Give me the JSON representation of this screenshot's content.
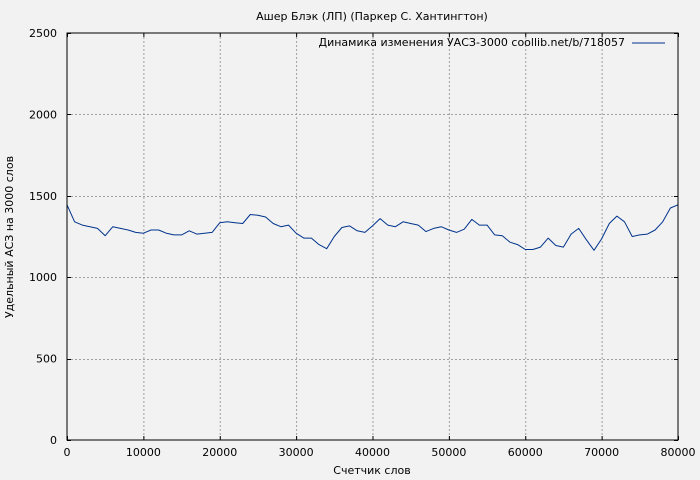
{
  "chart_data": {
    "type": "line",
    "title": "Ашер Блэк (ЛП) (Паркер С. Хантингтон)",
    "xlabel": "Счетчик слов",
    "ylabel": "Удельный АСЗ на 3000 слов",
    "xlim": [
      0,
      80000
    ],
    "ylim": [
      0,
      2500
    ],
    "x_ticks": [
      0,
      10000,
      20000,
      30000,
      40000,
      50000,
      60000,
      70000,
      80000
    ],
    "x_tick_labels": [
      "0",
      "10000",
      "20000",
      "30000",
      "40000",
      "50000",
      "60000",
      "70000",
      "80000"
    ],
    "y_ticks": [
      0,
      500,
      1000,
      1500,
      2000,
      2500
    ],
    "y_tick_labels": [
      "0",
      "500",
      "1000",
      "1500",
      "2000",
      "2500"
    ],
    "grid": true,
    "legend_position": "top-right",
    "series": [
      {
        "name": "Динамика изменения УАСЗ-3000 coollib.net/b/718057",
        "color": "#00338c",
        "x": [
          0,
          1000,
          2000,
          3000,
          4000,
          5000,
          6000,
          7000,
          8000,
          9000,
          10000,
          11000,
          12000,
          13000,
          14000,
          15000,
          16000,
          17000,
          18000,
          19000,
          20000,
          21000,
          22000,
          23000,
          24000,
          25000,
          26000,
          27000,
          28000,
          29000,
          30000,
          31000,
          32000,
          33000,
          34000,
          35000,
          36000,
          37000,
          38000,
          39000,
          40000,
          41000,
          42000,
          43000,
          44000,
          45000,
          46000,
          47000,
          48000,
          49000,
          50000,
          51000,
          52000,
          53000,
          54000,
          55000,
          56000,
          57000,
          58000,
          59000,
          60000,
          61000,
          62000,
          63000,
          64000,
          65000,
          66000,
          67000,
          68000,
          69000,
          70000,
          71000,
          72000,
          73000,
          74000,
          75000,
          76000,
          77000,
          78000,
          79000,
          80000
        ],
        "y": [
          1445,
          1340,
          1320,
          1310,
          1300,
          1255,
          1310,
          1300,
          1290,
          1275,
          1270,
          1290,
          1290,
          1270,
          1260,
          1260,
          1285,
          1265,
          1270,
          1275,
          1335,
          1340,
          1335,
          1330,
          1385,
          1380,
          1370,
          1330,
          1310,
          1320,
          1270,
          1240,
          1240,
          1200,
          1175,
          1250,
          1305,
          1315,
          1285,
          1275,
          1315,
          1360,
          1320,
          1310,
          1340,
          1330,
          1320,
          1280,
          1300,
          1310,
          1290,
          1275,
          1295,
          1355,
          1320,
          1320,
          1260,
          1255,
          1215,
          1200,
          1170,
          1170,
          1185,
          1240,
          1195,
          1185,
          1265,
          1300,
          1230,
          1165,
          1235,
          1330,
          1375,
          1340,
          1250,
          1260,
          1265,
          1290,
          1340,
          1425,
          1445
        ]
      }
    ]
  }
}
